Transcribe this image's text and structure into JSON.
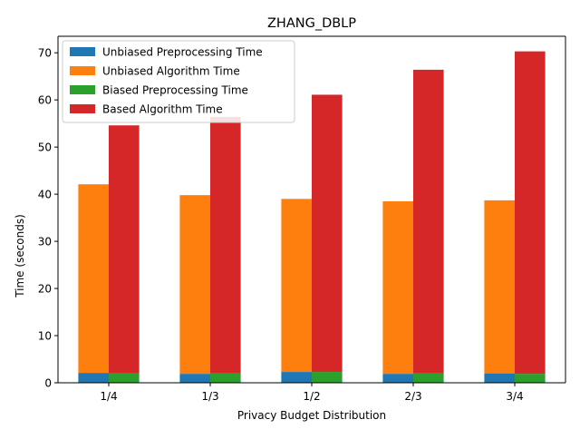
{
  "chart_data": {
    "type": "bar",
    "title": "ZHANG_DBLP",
    "xlabel": "Privacy Budget Distribution",
    "ylabel": "Time (seconds)",
    "categories": [
      "1/4",
      "1/3",
      "1/2",
      "2/3",
      "3/4"
    ],
    "ylim": [
      0,
      73.5
    ],
    "yticks": [
      0,
      10,
      20,
      30,
      40,
      50,
      60,
      70
    ],
    "grid": false,
    "legend_position": "top-left",
    "stacking": "two stacked bars per category: unbiased (left) and biased (right); algorithm time stacked on preprocessing time",
    "series": [
      {
        "name": "Unbiased Preprocessing Time",
        "color": "#1f77b4",
        "stack": "unbiased",
        "values": [
          2.1,
          1.9,
          2.3,
          1.9,
          2.0
        ]
      },
      {
        "name": "Unbiased Algorithm Time",
        "color": "#ff7f0e",
        "stack": "unbiased",
        "values": [
          40.0,
          37.9,
          36.7,
          36.6,
          36.7
        ]
      },
      {
        "name": "Biased Preprocessing Time",
        "color": "#2ca02c",
        "stack": "biased",
        "values": [
          2.0,
          2.0,
          2.3,
          2.0,
          1.9
        ]
      },
      {
        "name": "Based Algorithm Time",
        "color": "#d62728",
        "stack": "biased",
        "values": [
          52.6,
          54.4,
          58.8,
          64.4,
          68.4
        ]
      }
    ]
  }
}
